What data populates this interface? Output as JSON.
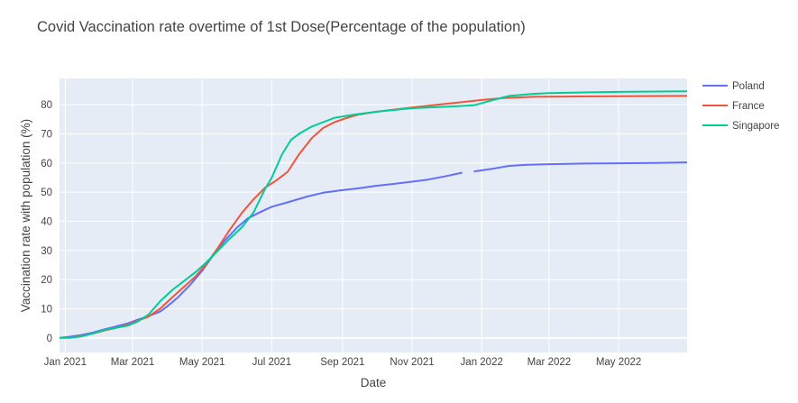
{
  "chart_data": {
    "type": "line",
    "title": "Covid Vaccination rate overtime of 1st Dose(Percentage of the population)",
    "xlabel": "Date",
    "ylabel": "Vaccination rate with population (%)",
    "xlim": [
      "2020-12-27",
      "2022-06-30"
    ],
    "ylim": [
      -5,
      89
    ],
    "x_ticks": [
      {
        "date": "2021-01-01",
        "label": "Jan 2021"
      },
      {
        "date": "2021-03-01",
        "label": "Mar 2021"
      },
      {
        "date": "2021-05-01",
        "label": "May 2021"
      },
      {
        "date": "2021-07-01",
        "label": "Jul 2021"
      },
      {
        "date": "2021-09-01",
        "label": "Sep 2021"
      },
      {
        "date": "2021-11-01",
        "label": "Nov 2021"
      },
      {
        "date": "2022-01-01",
        "label": "Jan 2022"
      },
      {
        "date": "2022-03-01",
        "label": "Mar 2022"
      },
      {
        "date": "2022-05-01",
        "label": "May 2022"
      }
    ],
    "y_ticks": [
      0,
      10,
      20,
      30,
      40,
      50,
      60,
      70,
      80
    ],
    "legend_position": "top-right",
    "grid": true,
    "series": [
      {
        "name": "Poland",
        "color": "#636efa",
        "points": [
          [
            "2020-12-27",
            0
          ],
          [
            "2021-01-05",
            0.4
          ],
          [
            "2021-01-15",
            1.0
          ],
          [
            "2021-01-25",
            1.8
          ],
          [
            "2021-02-05",
            3.0
          ],
          [
            "2021-02-15",
            4.0
          ],
          [
            "2021-02-25",
            5.0
          ],
          [
            "2021-03-05",
            6.2
          ],
          [
            "2021-03-15",
            7.5
          ],
          [
            "2021-03-25",
            9.0
          ],
          [
            "2021-04-01",
            11.0
          ],
          [
            "2021-04-10",
            14.0
          ],
          [
            "2021-04-20",
            18.0
          ],
          [
            "2021-05-01",
            23.0
          ],
          [
            "2021-05-10",
            28.0
          ],
          [
            "2021-05-20",
            33.0
          ],
          [
            "2021-06-01",
            38.0
          ],
          [
            "2021-06-10",
            41.0
          ],
          [
            "2021-06-20",
            43.0
          ],
          [
            "2021-07-01",
            45.0
          ],
          [
            "2021-07-15",
            46.5
          ],
          [
            "2021-08-01",
            48.5
          ],
          [
            "2021-08-15",
            49.8
          ],
          [
            "2021-09-01",
            50.7
          ],
          [
            "2021-09-15",
            51.3
          ],
          [
            "2021-10-01",
            52.2
          ],
          [
            "2021-10-15",
            52.8
          ],
          [
            "2021-11-01",
            53.6
          ],
          [
            "2021-11-15",
            54.3
          ],
          [
            "2021-12-01",
            55.5
          ],
          [
            "2021-12-15",
            56.7
          ],
          null,
          [
            "2021-12-25",
            57.1
          ],
          [
            "2022-01-10",
            58.0
          ],
          [
            "2022-01-25",
            59.0
          ],
          [
            "2022-02-10",
            59.4
          ],
          [
            "2022-03-01",
            59.6
          ],
          [
            "2022-04-01",
            59.8
          ],
          [
            "2022-05-01",
            59.9
          ],
          [
            "2022-06-01",
            60.0
          ],
          [
            "2022-06-30",
            60.2
          ]
        ]
      },
      {
        "name": "France",
        "color": "#ef553b",
        "points": [
          [
            "2020-12-27",
            0
          ],
          [
            "2021-01-05",
            0.1
          ],
          [
            "2021-01-15",
            0.6
          ],
          [
            "2021-01-25",
            1.5
          ],
          [
            "2021-02-05",
            2.6
          ],
          [
            "2021-02-15",
            3.5
          ],
          [
            "2021-02-25",
            4.5
          ],
          [
            "2021-03-05",
            5.8
          ],
          [
            "2021-03-15",
            7.3
          ],
          [
            "2021-03-25",
            10.0
          ],
          [
            "2021-04-05",
            14.0
          ],
          [
            "2021-04-15",
            17.5
          ],
          [
            "2021-04-25",
            21.0
          ],
          [
            "2021-05-05",
            25.5
          ],
          [
            "2021-05-15",
            31.0
          ],
          [
            "2021-05-25",
            37.0
          ],
          [
            "2021-06-05",
            43.0
          ],
          [
            "2021-06-15",
            47.5
          ],
          [
            "2021-06-25",
            51.5
          ],
          [
            "2021-07-05",
            54.0
          ],
          [
            "2021-07-15",
            57.0
          ],
          [
            "2021-07-25",
            63.0
          ],
          [
            "2021-08-05",
            68.5
          ],
          [
            "2021-08-15",
            72.0
          ],
          [
            "2021-08-25",
            74.0
          ],
          [
            "2021-09-05",
            75.5
          ],
          [
            "2021-09-15",
            76.6
          ],
          [
            "2021-10-01",
            77.6
          ],
          [
            "2021-11-01",
            79.0
          ],
          [
            "2021-12-01",
            80.3
          ],
          [
            "2022-01-01",
            81.6
          ],
          [
            "2022-01-20",
            82.3
          ],
          [
            "2022-02-15",
            82.7
          ],
          [
            "2022-03-15",
            82.8
          ],
          [
            "2022-05-01",
            82.9
          ],
          [
            "2022-06-30",
            83.0
          ]
        ]
      },
      {
        "name": "Singapore",
        "color": "#00cc96",
        "points": [
          [
            "2020-12-27",
            0
          ],
          [
            "2021-01-05",
            0
          ],
          [
            "2021-01-15",
            0.5
          ],
          [
            "2021-01-25",
            1.5
          ],
          [
            "2021-02-05",
            2.8
          ],
          [
            "2021-02-15",
            3.5
          ],
          [
            "2021-02-25",
            4.2
          ],
          [
            "2021-03-05",
            5.5
          ],
          [
            "2021-03-15",
            8.0
          ],
          [
            "2021-03-25",
            12.5
          ],
          [
            "2021-04-05",
            16.5
          ],
          [
            "2021-04-15",
            19.5
          ],
          [
            "2021-04-25",
            22.5
          ],
          [
            "2021-05-05",
            26.0
          ],
          [
            "2021-05-15",
            30.0
          ],
          [
            "2021-05-25",
            34.0
          ],
          [
            "2021-06-05",
            38.0
          ],
          [
            "2021-06-15",
            43.0
          ],
          [
            "2021-06-25",
            51.0
          ],
          [
            "2021-07-01",
            55.0
          ],
          [
            "2021-07-10",
            63.0
          ],
          [
            "2021-07-18",
            68.0
          ],
          [
            "2021-07-25",
            70.0
          ],
          [
            "2021-08-05",
            72.5
          ],
          [
            "2021-08-15",
            74.0
          ],
          [
            "2021-08-25",
            75.5
          ],
          [
            "2021-09-10",
            76.5
          ],
          [
            "2021-10-01",
            77.6
          ],
          [
            "2021-11-01",
            78.8
          ],
          [
            "2021-12-01",
            79.3
          ],
          [
            "2021-12-25",
            79.8
          ],
          [
            "2022-01-10",
            81.5
          ],
          [
            "2022-01-25",
            83.0
          ],
          [
            "2022-02-15",
            83.7
          ],
          [
            "2022-03-01",
            84.0
          ],
          [
            "2022-04-01",
            84.2
          ],
          [
            "2022-05-01",
            84.4
          ],
          [
            "2022-06-30",
            84.6
          ]
        ]
      }
    ]
  }
}
